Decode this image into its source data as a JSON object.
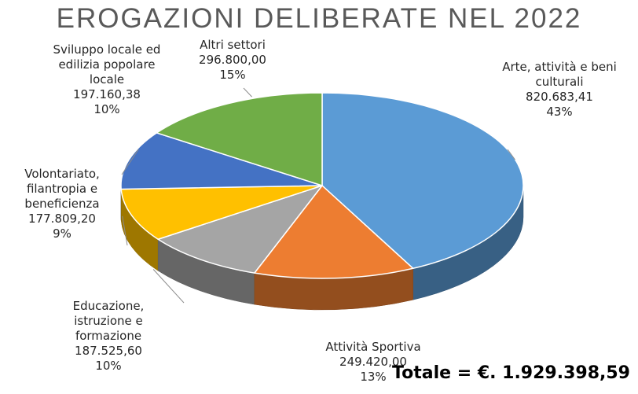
{
  "chart_data": {
    "type": "pie",
    "title": "EROGAZIONI DELIBERATE NEL 2022",
    "total": "Totale = €. 1.929.398,59",
    "slices": [
      {
        "name": "Arte, attività e beni culturali",
        "value": "820.683,41",
        "amount": 820683.41,
        "pct": "43%",
        "color": "#5B9BD5"
      },
      {
        "name": "Attività Sportiva",
        "value": "249.420,00",
        "amount": 249420.0,
        "pct": "13%",
        "color": "#ED7D31"
      },
      {
        "name": "Educazione, istruzione e formazione",
        "value": "187.525,60",
        "amount": 187525.6,
        "pct": "10%",
        "color": "#A5A5A5"
      },
      {
        "name": "Volontariato, filantropia e beneficienza",
        "value": "177.809,20",
        "amount": 177809.2,
        "pct": "9%",
        "color": "#FFC000"
      },
      {
        "name": "Sviluppo locale ed edilizia popolare locale",
        "value": "197.160,38",
        "amount": 197160.38,
        "pct": "10%",
        "color": "#4472C4"
      },
      {
        "name": "Altri settori",
        "value": "296.800,00",
        "amount": 296800.0,
        "pct": "15%",
        "color": "#70AD47"
      }
    ]
  }
}
